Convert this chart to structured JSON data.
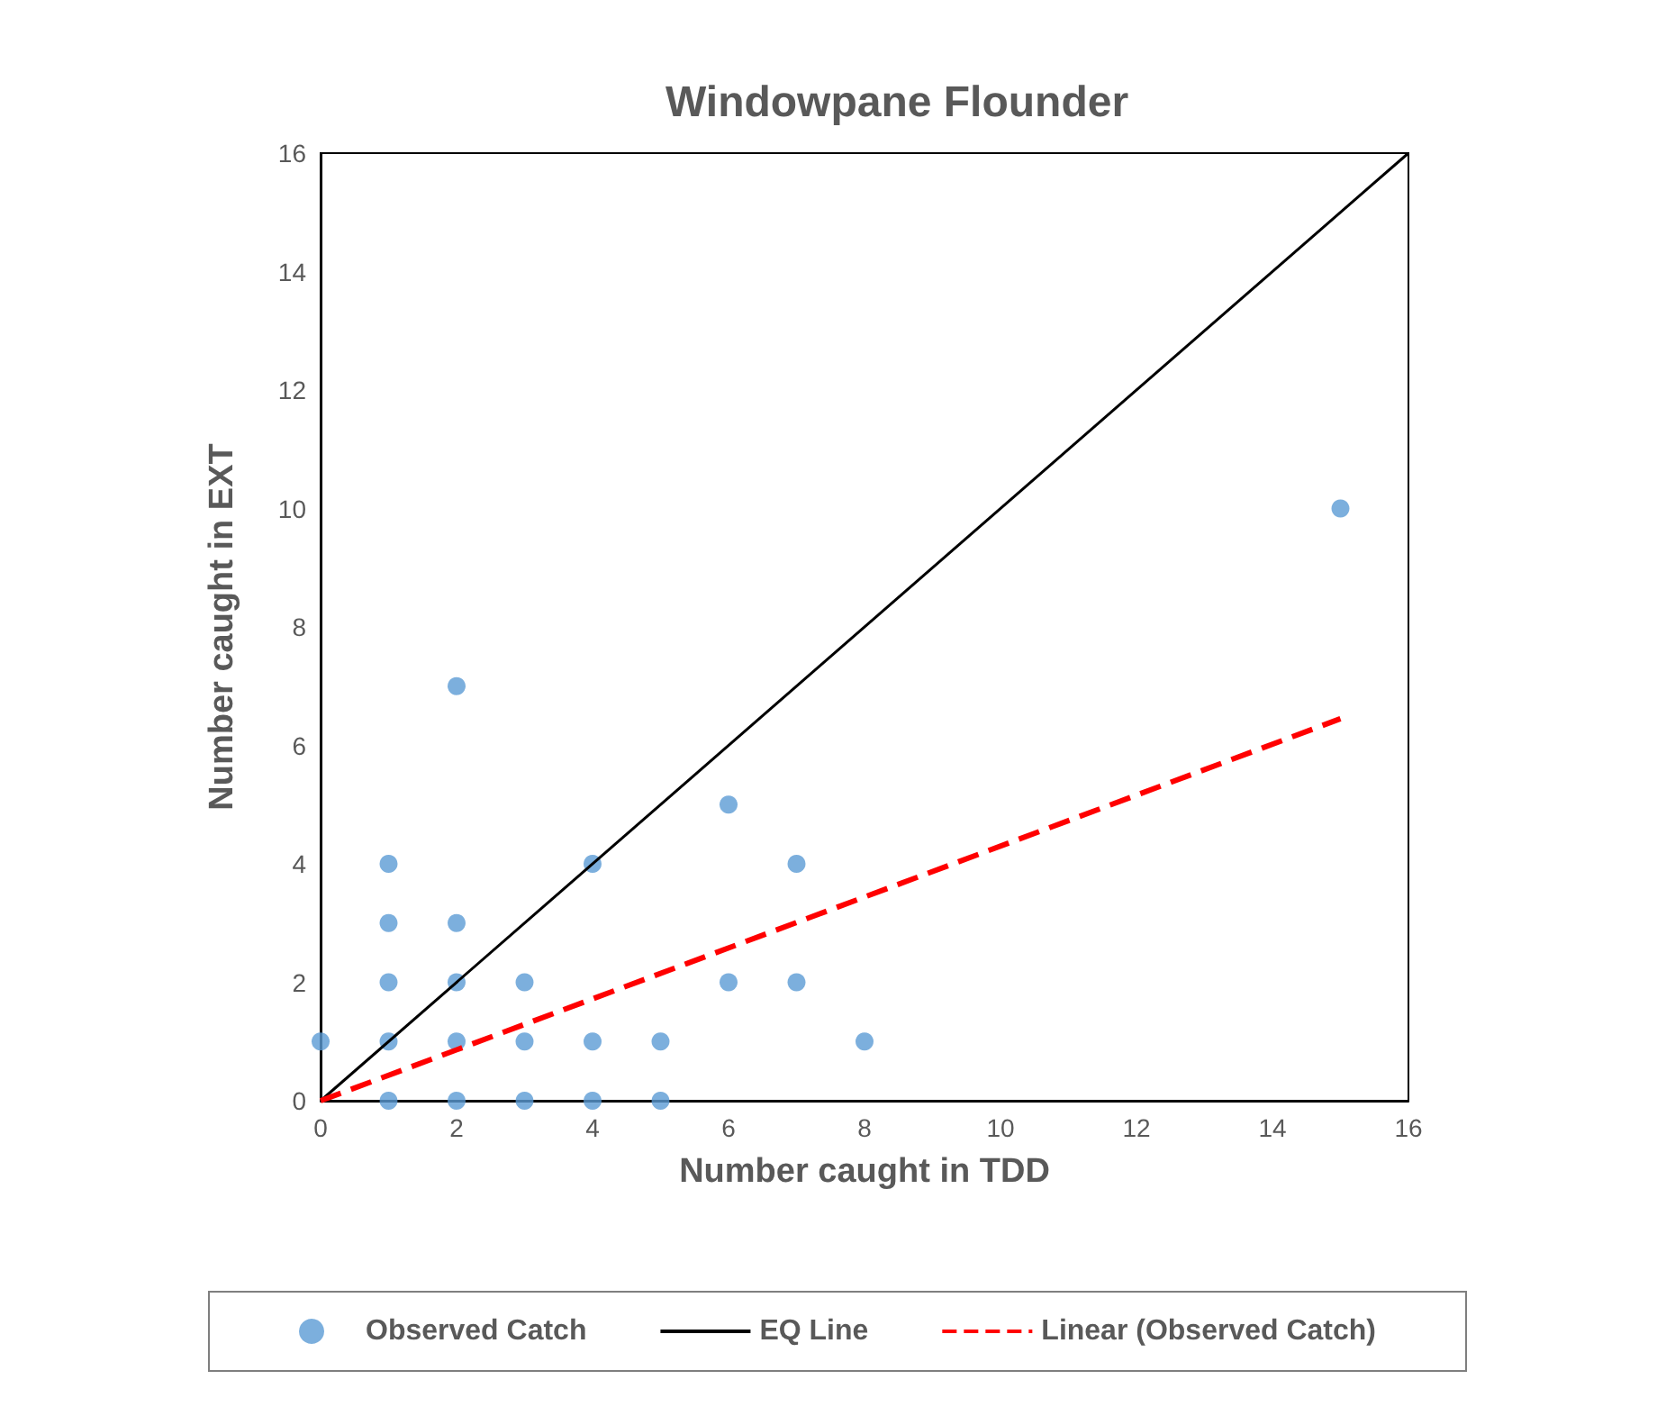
{
  "chart_data": {
    "type": "scatter",
    "title": "Windowpane Flounder",
    "xlabel": "Number caught in TDD",
    "ylabel": "Number caught in EXT",
    "xlim": [
      0,
      16
    ],
    "ylim": [
      0,
      16
    ],
    "xticks": [
      0,
      2,
      4,
      6,
      8,
      10,
      12,
      14,
      16
    ],
    "yticks": [
      0,
      2,
      4,
      6,
      8,
      10,
      12,
      14,
      16
    ],
    "grid": false,
    "legend": "bottom",
    "marker": "circle",
    "series": [
      {
        "name": "Observed Catch",
        "color": "#5b9bd5",
        "x": [
          0,
          1,
          1,
          1,
          1,
          1,
          2,
          2,
          2,
          2,
          2,
          3,
          3,
          3,
          4,
          4,
          4,
          5,
          5,
          6,
          6,
          7,
          7,
          8,
          15
        ],
        "values": [
          1,
          4,
          3,
          2,
          1,
          0,
          7,
          3,
          2,
          1,
          0,
          2,
          1,
          0,
          4,
          1,
          0,
          1,
          0,
          5,
          2,
          4,
          2,
          1,
          10
        ]
      },
      {
        "name": "EQ Line",
        "type": "line",
        "color": "#000000",
        "line_style": "solid",
        "marker": "none",
        "x": [
          0,
          16
        ],
        "values": [
          0,
          16
        ]
      },
      {
        "name": "Linear (Observed Catch)",
        "type": "line",
        "color": "#ff0000",
        "line_style": "dashed",
        "marker": "none",
        "x": [
          0,
          15
        ],
        "values": [
          0,
          6.45
        ]
      }
    ]
  }
}
